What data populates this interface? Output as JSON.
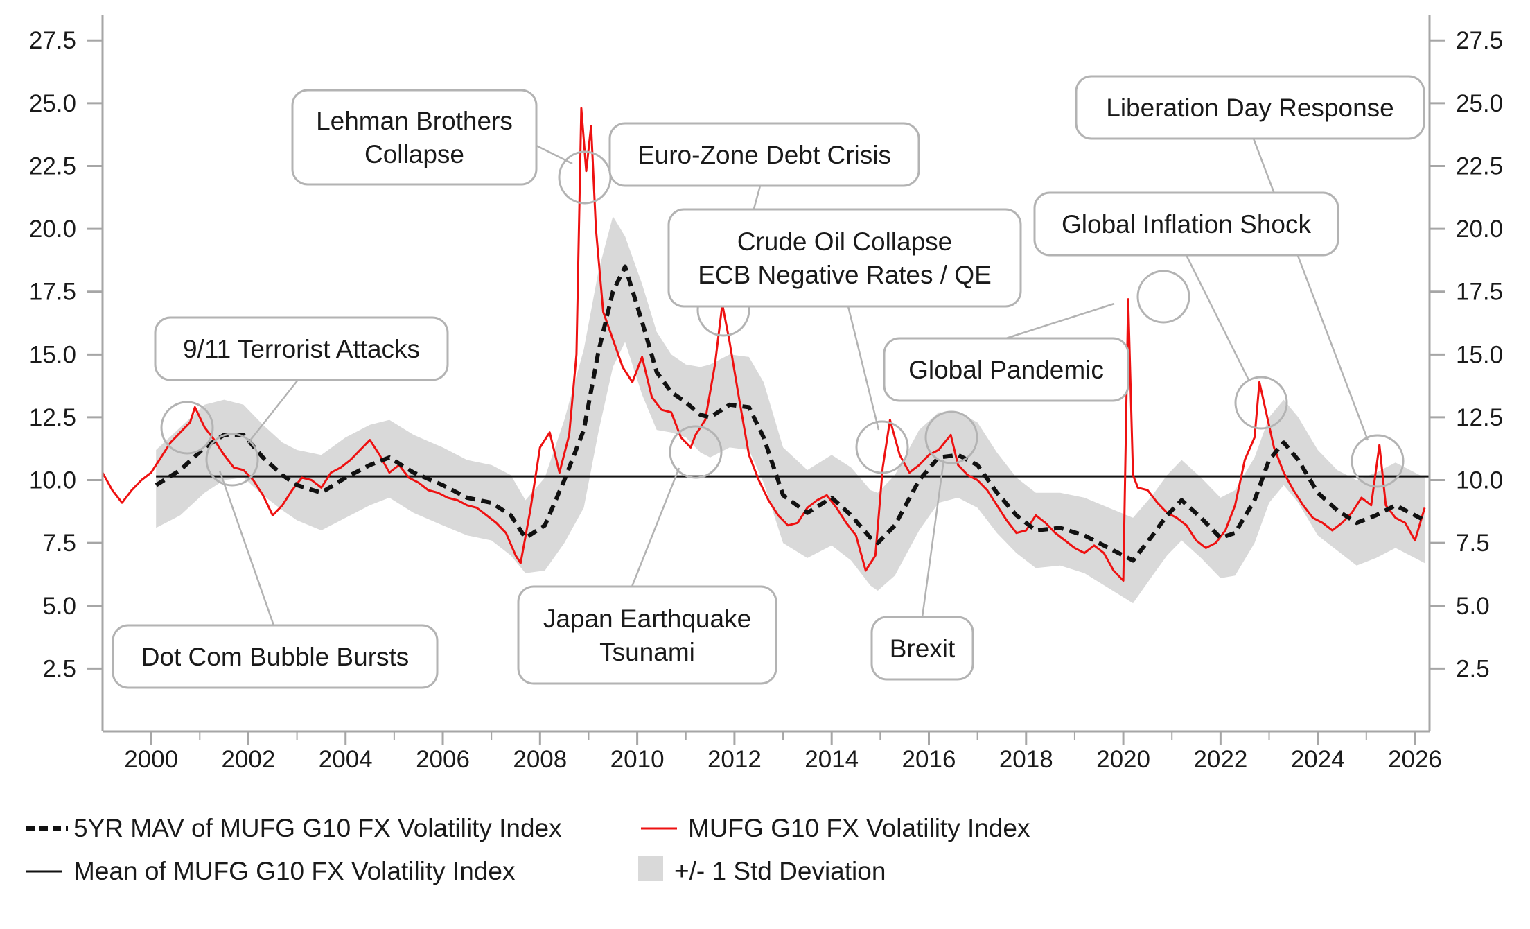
{
  "chart_data": {
    "type": "line",
    "title": "",
    "xlabel": "",
    "ylabel": "",
    "xlim": [
      1999.0,
      2026.3
    ],
    "ylim": [
      0,
      28.5
    ],
    "x_ticks": [
      "2000",
      "2002",
      "2004",
      "2006",
      "2008",
      "2010",
      "2012",
      "2014",
      "2016",
      "2018",
      "2020",
      "2022",
      "2024",
      "2026"
    ],
    "y_ticks": [
      "2.5",
      "5.0",
      "7.5",
      "10.0",
      "12.5",
      "15.0",
      "17.5",
      "20.0",
      "22.5",
      "25.0",
      "27.5"
    ],
    "grid": false,
    "legend_position": "bottom",
    "colors": {
      "index": "#ee1111",
      "mav": "#111111",
      "mean": "#111111",
      "band": "#d9d9d9",
      "callout_border": "#b3b3b3",
      "axis": "#a6a6a6"
    },
    "legend": [
      {
        "key": "mav",
        "label": "5YR MAV of MUFG G10 FX Volatility Index"
      },
      {
        "key": "index",
        "label": "MUFG G10 FX Volatility Index"
      },
      {
        "key": "mean",
        "label": "Mean of MUFG G10 FX Volatility Index"
      },
      {
        "key": "band",
        "label": "+/- 1 Std Deviation"
      }
    ],
    "mean_value": 10.15,
    "series": [
      {
        "name": "MUFG G10 FX Volatility Index",
        "x": [
          1999.0,
          1999.2,
          1999.4,
          1999.6,
          1999.8,
          2000.0,
          2000.2,
          2000.4,
          2000.6,
          2000.8,
          2000.9,
          2001.1,
          2001.3,
          2001.5,
          2001.7,
          2001.9,
          2002.1,
          2002.3,
          2002.5,
          2002.7,
          2002.9,
          2003.1,
          2003.3,
          2003.5,
          2003.7,
          2003.9,
          2004.1,
          2004.3,
          2004.5,
          2004.7,
          2004.9,
          2005.1,
          2005.3,
          2005.5,
          2005.7,
          2005.9,
          2006.1,
          2006.3,
          2006.5,
          2006.7,
          2006.9,
          2007.1,
          2007.3,
          2007.5,
          2007.6,
          2007.8,
          2008.0,
          2008.2,
          2008.4,
          2008.6,
          2008.75,
          2008.85,
          2008.95,
          2009.05,
          2009.15,
          2009.3,
          2009.5,
          2009.7,
          2009.9,
          2010.1,
          2010.3,
          2010.5,
          2010.7,
          2010.9,
          2011.1,
          2011.2,
          2011.4,
          2011.6,
          2011.75,
          2011.9,
          2012.1,
          2012.3,
          2012.5,
          2012.7,
          2012.9,
          2013.1,
          2013.3,
          2013.5,
          2013.7,
          2013.9,
          2014.1,
          2014.3,
          2014.5,
          2014.7,
          2014.9,
          2015.05,
          2015.2,
          2015.4,
          2015.6,
          2015.8,
          2016.0,
          2016.2,
          2016.45,
          2016.6,
          2016.8,
          2017.0,
          2017.2,
          2017.4,
          2017.6,
          2017.8,
          2018.0,
          2018.2,
          2018.4,
          2018.6,
          2018.8,
          2019.0,
          2019.2,
          2019.4,
          2019.6,
          2019.8,
          2020.0,
          2020.1,
          2020.2,
          2020.3,
          2020.5,
          2020.7,
          2020.9,
          2021.1,
          2021.3,
          2021.5,
          2021.7,
          2021.9,
          2022.1,
          2022.3,
          2022.5,
          2022.7,
          2022.8,
          2022.95,
          2023.1,
          2023.3,
          2023.5,
          2023.7,
          2023.9,
          2024.1,
          2024.3,
          2024.5,
          2024.7,
          2024.9,
          2025.1,
          2025.27,
          2025.4,
          2025.6,
          2025.8,
          2026.0,
          2026.2
        ],
        "values": [
          10.3,
          9.6,
          9.1,
          9.6,
          10.0,
          10.3,
          10.9,
          11.5,
          11.9,
          12.3,
          12.9,
          12.1,
          11.6,
          11.0,
          10.5,
          10.4,
          10.0,
          9.4,
          8.6,
          9.0,
          9.6,
          10.1,
          10.0,
          9.7,
          10.3,
          10.5,
          10.8,
          11.2,
          11.6,
          11.0,
          10.3,
          10.6,
          10.1,
          9.9,
          9.6,
          9.5,
          9.3,
          9.2,
          9.0,
          8.9,
          8.6,
          8.3,
          7.9,
          7.0,
          6.7,
          8.8,
          11.3,
          11.9,
          10.3,
          11.8,
          15.0,
          24.8,
          22.3,
          24.1,
          20.0,
          16.7,
          15.6,
          14.5,
          13.9,
          14.9,
          13.3,
          12.8,
          12.7,
          11.7,
          11.3,
          11.8,
          12.4,
          14.6,
          17.0,
          15.5,
          13.2,
          11.0,
          10.0,
          9.2,
          8.6,
          8.2,
          8.3,
          8.9,
          9.2,
          9.4,
          8.9,
          8.3,
          7.8,
          6.4,
          7.0,
          10.5,
          12.4,
          11.0,
          10.3,
          10.6,
          11.0,
          11.2,
          11.8,
          10.6,
          10.2,
          10.0,
          9.6,
          9.0,
          8.4,
          7.9,
          8.0,
          8.6,
          8.3,
          7.9,
          7.6,
          7.3,
          7.1,
          7.4,
          7.1,
          6.4,
          6.0,
          17.2,
          10.2,
          9.7,
          9.6,
          9.1,
          8.7,
          8.5,
          8.2,
          7.6,
          7.3,
          7.5,
          8.0,
          9.0,
          10.8,
          11.7,
          13.9,
          12.6,
          11.3,
          10.3,
          9.6,
          9.0,
          8.5,
          8.3,
          8.0,
          8.3,
          8.7,
          9.3,
          9.0,
          11.4,
          9.0,
          8.5,
          8.3,
          7.6,
          8.9
        ]
      },
      {
        "name": "5YR MAV of MUFG G10 FX Volatility Index",
        "x": [
          2000.1,
          2000.6,
          2001.1,
          2001.5,
          2001.9,
          2002.3,
          2002.7,
          2003.0,
          2003.5,
          2004.0,
          2004.5,
          2004.9,
          2005.4,
          2006.0,
          2006.5,
          2007.0,
          2007.4,
          2007.7,
          2008.1,
          2008.5,
          2008.9,
          2009.2,
          2009.5,
          2009.75,
          2010.1,
          2010.4,
          2010.7,
          2011.0,
          2011.3,
          2011.5,
          2011.9,
          2012.3,
          2012.6,
          2013.0,
          2013.5,
          2014.0,
          2014.4,
          2014.8,
          2014.95,
          2015.3,
          2015.8,
          2016.2,
          2016.6,
          2017.0,
          2017.4,
          2017.8,
          2018.2,
          2018.7,
          2019.2,
          2019.7,
          2020.2,
          2020.6,
          2020.9,
          2021.2,
          2021.6,
          2022.0,
          2022.3,
          2022.7,
          2023.0,
          2023.3,
          2023.6,
          2024.0,
          2024.4,
          2024.8,
          2025.2,
          2025.6,
          2026.0,
          2026.2
        ],
        "values": [
          9.8,
          10.4,
          11.3,
          11.8,
          11.8,
          10.9,
          10.2,
          9.8,
          9.5,
          10.1,
          10.6,
          10.9,
          10.3,
          9.8,
          9.3,
          9.1,
          8.6,
          7.7,
          8.2,
          10.0,
          12.0,
          15.1,
          17.5,
          18.5,
          16.3,
          14.3,
          13.5,
          13.1,
          12.6,
          12.5,
          13.0,
          12.9,
          11.7,
          9.4,
          8.7,
          9.3,
          8.6,
          7.7,
          7.5,
          8.2,
          10.0,
          10.9,
          11.0,
          10.6,
          9.5,
          8.6,
          8.0,
          8.1,
          7.8,
          7.3,
          6.8,
          7.8,
          8.6,
          9.2,
          8.5,
          7.7,
          7.9,
          9.2,
          10.8,
          11.5,
          10.8,
          9.5,
          8.8,
          8.3,
          8.6,
          9.0,
          8.6,
          8.4
        ]
      },
      {
        "name": "+/- 1 Std Deviation",
        "x": [
          2000.1,
          2000.6,
          2001.1,
          2001.5,
          2001.9,
          2002.3,
          2002.7,
          2003.0,
          2003.5,
          2004.0,
          2004.5,
          2004.9,
          2005.4,
          2006.0,
          2006.5,
          2007.0,
          2007.4,
          2007.7,
          2008.1,
          2008.5,
          2008.9,
          2009.2,
          2009.5,
          2009.75,
          2010.1,
          2010.4,
          2010.7,
          2011.0,
          2011.3,
          2011.5,
          2011.9,
          2012.3,
          2012.6,
          2013.0,
          2013.5,
          2014.0,
          2014.4,
          2014.8,
          2014.95,
          2015.3,
          2015.8,
          2016.2,
          2016.6,
          2017.0,
          2017.4,
          2017.8,
          2018.2,
          2018.7,
          2019.2,
          2019.7,
          2020.2,
          2020.6,
          2020.9,
          2021.2,
          2021.6,
          2022.0,
          2022.3,
          2022.7,
          2023.0,
          2023.3,
          2023.6,
          2024.0,
          2024.4,
          2024.8,
          2025.2,
          2025.6,
          2026.0,
          2026.2
        ],
        "upper": [
          11.2,
          12.1,
          13.0,
          13.2,
          13.0,
          12.2,
          11.5,
          11.2,
          11.0,
          11.7,
          12.2,
          12.4,
          11.8,
          11.3,
          10.8,
          10.6,
          10.2,
          9.2,
          10.1,
          12.4,
          15.2,
          18.3,
          20.5,
          19.7,
          17.8,
          15.9,
          15.0,
          14.6,
          14.5,
          14.6,
          15.0,
          14.9,
          13.9,
          11.3,
          10.4,
          11.0,
          10.5,
          9.6,
          9.5,
          10.2,
          12.0,
          12.7,
          12.7,
          12.3,
          11.1,
          10.1,
          9.5,
          9.5,
          9.3,
          8.9,
          8.5,
          9.4,
          10.2,
          10.8,
          10.1,
          9.3,
          9.6,
          10.9,
          12.5,
          13.2,
          12.5,
          11.2,
          10.4,
          10.0,
          10.3,
          10.7,
          10.3,
          10.1
        ],
        "lower": [
          8.1,
          8.6,
          9.5,
          10.0,
          10.1,
          9.4,
          8.8,
          8.4,
          8.0,
          8.5,
          9.0,
          9.3,
          8.7,
          8.2,
          7.8,
          7.6,
          7.0,
          6.3,
          6.4,
          7.5,
          8.9,
          11.9,
          14.5,
          15.5,
          13.4,
          12.0,
          11.9,
          11.7,
          11.1,
          10.9,
          11.3,
          11.2,
          9.9,
          7.5,
          6.9,
          7.4,
          6.8,
          5.8,
          5.6,
          6.2,
          8.0,
          9.1,
          9.3,
          8.9,
          7.9,
          7.1,
          6.5,
          6.6,
          6.3,
          5.7,
          5.1,
          6.2,
          7.0,
          7.6,
          6.9,
          6.1,
          6.2,
          7.5,
          9.1,
          9.8,
          9.1,
          7.8,
          7.2,
          6.6,
          6.9,
          7.3,
          6.9,
          6.7
        ]
      }
    ],
    "annotations": [
      {
        "key": "lehman",
        "lines": [
          "Lehman Brothers",
          "Collapse"
        ]
      },
      {
        "key": "eurozone",
        "lines": [
          "Euro-Zone Debt Crisis"
        ]
      },
      {
        "key": "crude",
        "lines": [
          "Crude Oil Collapse",
          "ECB Negative Rates / QE"
        ]
      },
      {
        "key": "nineeleven",
        "lines": [
          "9/11 Terrorist Attacks"
        ]
      },
      {
        "key": "dotcom",
        "lines": [
          "Dot Com Bubble Bursts"
        ]
      },
      {
        "key": "japan",
        "lines": [
          "Japan Earthquake",
          "Tsunami"
        ]
      },
      {
        "key": "brexit",
        "lines": [
          "Brexit"
        ]
      },
      {
        "key": "pandemic",
        "lines": [
          "Global Pandemic"
        ]
      },
      {
        "key": "inflation",
        "lines": [
          "Global Inflation Shock"
        ]
      },
      {
        "key": "liberation",
        "lines": [
          "Liberation Day Response"
        ]
      }
    ]
  }
}
